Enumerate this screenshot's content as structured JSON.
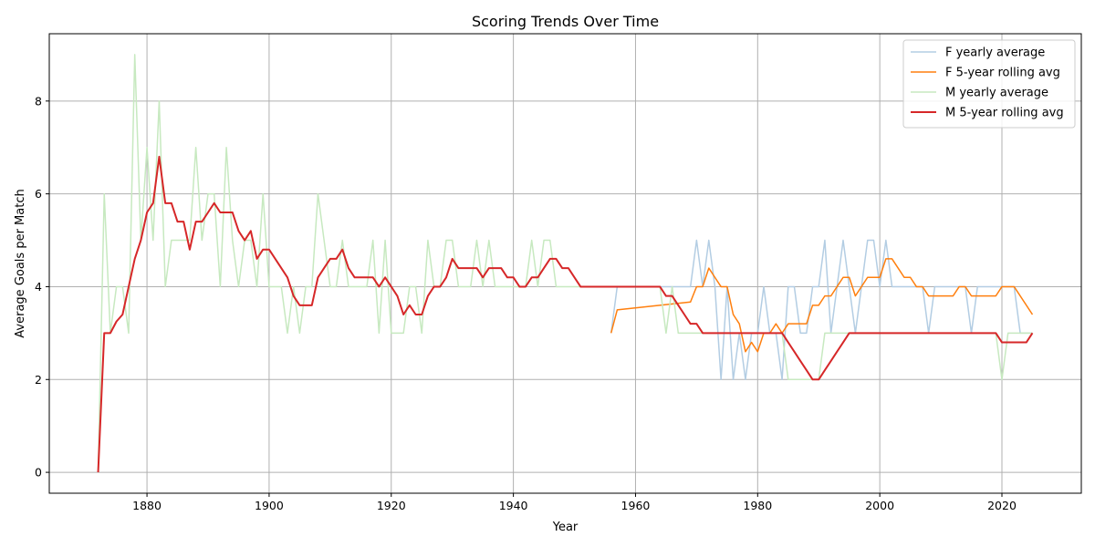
{
  "chart_data": {
    "type": "line",
    "title": "Scoring Trends Over Time",
    "xlabel": "Year",
    "ylabel": "Average Goals per Match",
    "xlim": [
      1864,
      2033
    ],
    "ylim": [
      -0.45,
      9.45
    ],
    "xticks": [
      1880,
      1900,
      1920,
      1940,
      1960,
      1980,
      2000,
      2020
    ],
    "yticks": [
      0,
      2,
      4,
      6,
      8
    ],
    "grid": true,
    "legend_position": "top-right",
    "series": [
      {
        "name": "F yearly average",
        "color": "#b3cde3",
        "width": 1.5,
        "points": [
          [
            1956,
            3
          ],
          [
            1957,
            4
          ],
          [
            1958,
            4
          ],
          [
            1959,
            4
          ],
          [
            1960,
            4
          ],
          [
            1961,
            4
          ],
          [
            1962,
            4
          ],
          [
            1963,
            4
          ],
          [
            1964,
            4
          ],
          [
            1965,
            4
          ],
          [
            1966,
            4
          ],
          [
            1967,
            4
          ],
          [
            1968,
            4
          ],
          [
            1969,
            4
          ],
          [
            1970,
            5
          ],
          [
            1971,
            4
          ],
          [
            1972,
            5
          ],
          [
            1973,
            4
          ],
          [
            1974,
            2
          ],
          [
            1975,
            4
          ],
          [
            1976,
            2
          ],
          [
            1977,
            3
          ],
          [
            1978,
            2
          ],
          [
            1979,
            3
          ],
          [
            1980,
            3
          ],
          [
            1981,
            4
          ],
          [
            1982,
            3
          ],
          [
            1983,
            3
          ],
          [
            1984,
            2
          ],
          [
            1985,
            4
          ],
          [
            1986,
            4
          ],
          [
            1987,
            3
          ],
          [
            1988,
            3
          ],
          [
            1989,
            4
          ],
          [
            1990,
            4
          ],
          [
            1991,
            5
          ],
          [
            1992,
            3
          ],
          [
            1993,
            4
          ],
          [
            1994,
            5
          ],
          [
            1995,
            4
          ],
          [
            1996,
            3
          ],
          [
            1997,
            4
          ],
          [
            1998,
            5
          ],
          [
            1999,
            5
          ],
          [
            2000,
            4
          ],
          [
            2001,
            5
          ],
          [
            2002,
            4
          ],
          [
            2003,
            4
          ],
          [
            2004,
            4
          ],
          [
            2005,
            4
          ],
          [
            2006,
            4
          ],
          [
            2007,
            4
          ],
          [
            2008,
            3
          ],
          [
            2009,
            4
          ],
          [
            2010,
            4
          ],
          [
            2011,
            4
          ],
          [
            2012,
            4
          ],
          [
            2013,
            4
          ],
          [
            2014,
            4
          ],
          [
            2015,
            3
          ],
          [
            2016,
            4
          ],
          [
            2017,
            4
          ],
          [
            2018,
            4
          ],
          [
            2019,
            4
          ],
          [
            2020,
            4
          ],
          [
            2021,
            4
          ],
          [
            2022,
            4
          ],
          [
            2023,
            3
          ],
          [
            2024,
            3
          ],
          [
            2025,
            3
          ]
        ]
      },
      {
        "name": "F 5-year rolling avg",
        "color": "#ff7f0e",
        "width": 1.5,
        "points": [
          [
            1956,
            3
          ],
          [
            1957,
            3.5
          ],
          [
            1969,
            3.67
          ],
          [
            1970,
            4
          ],
          [
            1971,
            4
          ],
          [
            1972,
            4.4
          ],
          [
            1973,
            4.2
          ],
          [
            1974,
            4
          ],
          [
            1975,
            4
          ],
          [
            1976,
            3.4
          ],
          [
            1977,
            3.2
          ],
          [
            1978,
            2.6
          ],
          [
            1979,
            2.8
          ],
          [
            1980,
            2.6
          ],
          [
            1981,
            3
          ],
          [
            1982,
            3
          ],
          [
            1983,
            3.2
          ],
          [
            1984,
            3
          ],
          [
            1985,
            3.2
          ],
          [
            1986,
            3.2
          ],
          [
            1987,
            3.2
          ],
          [
            1988,
            3.2
          ],
          [
            1989,
            3.6
          ],
          [
            1990,
            3.6
          ],
          [
            1991,
            3.8
          ],
          [
            1992,
            3.8
          ],
          [
            1993,
            4
          ],
          [
            1994,
            4.2
          ],
          [
            1995,
            4.2
          ],
          [
            1996,
            3.8
          ],
          [
            1997,
            4
          ],
          [
            1998,
            4.2
          ],
          [
            1999,
            4.2
          ],
          [
            2000,
            4.2
          ],
          [
            2001,
            4.6
          ],
          [
            2002,
            4.6
          ],
          [
            2003,
            4.4
          ],
          [
            2004,
            4.2
          ],
          [
            2005,
            4.2
          ],
          [
            2006,
            4
          ],
          [
            2007,
            4
          ],
          [
            2008,
            3.8
          ],
          [
            2009,
            3.8
          ],
          [
            2010,
            3.8
          ],
          [
            2011,
            3.8
          ],
          [
            2012,
            3.8
          ],
          [
            2013,
            4
          ],
          [
            2014,
            4
          ],
          [
            2015,
            3.8
          ],
          [
            2016,
            3.8
          ],
          [
            2017,
            3.8
          ],
          [
            2018,
            3.8
          ],
          [
            2019,
            3.8
          ],
          [
            2020,
            4
          ],
          [
            2021,
            4
          ],
          [
            2022,
            4
          ],
          [
            2025,
            3.4
          ]
        ]
      },
      {
        "name": "M yearly average",
        "color": "#c7e9c0",
        "width": 1.5,
        "points": [
          [
            1872,
            0
          ],
          [
            1873,
            6
          ],
          [
            1874,
            3
          ],
          [
            1875,
            4
          ],
          [
            1876,
            4
          ],
          [
            1877,
            3
          ],
          [
            1878,
            9
          ],
          [
            1879,
            5
          ],
          [
            1880,
            7
          ],
          [
            1881,
            5
          ],
          [
            1882,
            8
          ],
          [
            1883,
            4
          ],
          [
            1884,
            5
          ],
          [
            1885,
            5
          ],
          [
            1886,
            5
          ],
          [
            1887,
            5
          ],
          [
            1888,
            7
          ],
          [
            1889,
            5
          ],
          [
            1890,
            6
          ],
          [
            1891,
            6
          ],
          [
            1892,
            4
          ],
          [
            1893,
            7
          ],
          [
            1894,
            5
          ],
          [
            1895,
            4
          ],
          [
            1896,
            5
          ],
          [
            1897,
            5
          ],
          [
            1898,
            4
          ],
          [
            1899,
            6
          ],
          [
            1900,
            4
          ],
          [
            1901,
            4
          ],
          [
            1902,
            4
          ],
          [
            1903,
            3
          ],
          [
            1904,
            4
          ],
          [
            1905,
            3
          ],
          [
            1906,
            4
          ],
          [
            1907,
            4
          ],
          [
            1908,
            6
          ],
          [
            1909,
            5
          ],
          [
            1910,
            4
          ],
          [
            1911,
            4
          ],
          [
            1912,
            5
          ],
          [
            1913,
            4
          ],
          [
            1914,
            4
          ],
          [
            1915,
            4
          ],
          [
            1916,
            4
          ],
          [
            1917,
            5
          ],
          [
            1918,
            3
          ],
          [
            1919,
            5
          ],
          [
            1920,
            3
          ],
          [
            1921,
            3
          ],
          [
            1922,
            3
          ],
          [
            1923,
            4
          ],
          [
            1924,
            4
          ],
          [
            1925,
            3
          ],
          [
            1926,
            5
          ],
          [
            1927,
            4
          ],
          [
            1928,
            4
          ],
          [
            1929,
            5
          ],
          [
            1930,
            5
          ],
          [
            1931,
            4
          ],
          [
            1932,
            4
          ],
          [
            1933,
            4
          ],
          [
            1934,
            5
          ],
          [
            1935,
            4
          ],
          [
            1936,
            5
          ],
          [
            1937,
            4
          ],
          [
            1938,
            4
          ],
          [
            1939,
            4
          ],
          [
            1940,
            4
          ],
          [
            1941,
            4
          ],
          [
            1942,
            4
          ],
          [
            1943,
            5
          ],
          [
            1944,
            4
          ],
          [
            1945,
            5
          ],
          [
            1946,
            5
          ],
          [
            1947,
            4
          ],
          [
            1948,
            4
          ],
          [
            1949,
            4
          ],
          [
            1950,
            4
          ],
          [
            1951,
            4
          ],
          [
            1964,
            4
          ],
          [
            1965,
            3
          ],
          [
            1966,
            4
          ],
          [
            1967,
            3
          ],
          [
            1968,
            3
          ],
          [
            1969,
            3
          ],
          [
            1970,
            3
          ],
          [
            1984,
            3
          ],
          [
            1985,
            2
          ],
          [
            1989,
            2
          ],
          [
            1990,
            2
          ],
          [
            1991,
            3
          ],
          [
            1992,
            3
          ],
          [
            2019,
            3
          ],
          [
            2020,
            2
          ],
          [
            2021,
            3
          ],
          [
            2022,
            3
          ],
          [
            2025,
            3
          ]
        ]
      },
      {
        "name": "M 5-year rolling avg",
        "color": "#d62728",
        "width": 2,
        "points": [
          [
            1872,
            0
          ],
          [
            1873,
            3
          ],
          [
            1874,
            3
          ],
          [
            1875,
            3.25
          ],
          [
            1876,
            3.4
          ],
          [
            1877,
            4
          ],
          [
            1878,
            4.6
          ],
          [
            1879,
            5
          ],
          [
            1880,
            5.6
          ],
          [
            1881,
            5.8
          ],
          [
            1882,
            6.8
          ],
          [
            1883,
            5.8
          ],
          [
            1884,
            5.8
          ],
          [
            1885,
            5.4
          ],
          [
            1886,
            5.4
          ],
          [
            1887,
            4.8
          ],
          [
            1888,
            5.4
          ],
          [
            1889,
            5.4
          ],
          [
            1890,
            5.6
          ],
          [
            1891,
            5.8
          ],
          [
            1892,
            5.6
          ],
          [
            1893,
            5.6
          ],
          [
            1894,
            5.6
          ],
          [
            1895,
            5.2
          ],
          [
            1896,
            5
          ],
          [
            1897,
            5.2
          ],
          [
            1898,
            4.6
          ],
          [
            1899,
            4.8
          ],
          [
            1900,
            4.8
          ],
          [
            1903,
            4.2
          ],
          [
            1904,
            3.8
          ],
          [
            1905,
            3.6
          ],
          [
            1906,
            3.6
          ],
          [
            1907,
            3.6
          ],
          [
            1908,
            4.2
          ],
          [
            1909,
            4.4
          ],
          [
            1910,
            4.6
          ],
          [
            1911,
            4.6
          ],
          [
            1912,
            4.8
          ],
          [
            1913,
            4.4
          ],
          [
            1914,
            4.2
          ],
          [
            1915,
            4.2
          ],
          [
            1916,
            4.2
          ],
          [
            1917,
            4.2
          ],
          [
            1918,
            4
          ],
          [
            1919,
            4.2
          ],
          [
            1920,
            4
          ],
          [
            1921,
            3.8
          ],
          [
            1922,
            3.4
          ],
          [
            1923,
            3.6
          ],
          [
            1924,
            3.4
          ],
          [
            1925,
            3.4
          ],
          [
            1926,
            3.8
          ],
          [
            1927,
            4
          ],
          [
            1928,
            4
          ],
          [
            1929,
            4.2
          ],
          [
            1930,
            4.6
          ],
          [
            1931,
            4.4
          ],
          [
            1932,
            4.4
          ],
          [
            1933,
            4.4
          ],
          [
            1934,
            4.4
          ],
          [
            1935,
            4.2
          ],
          [
            1936,
            4.4
          ],
          [
            1937,
            4.4
          ],
          [
            1938,
            4.4
          ],
          [
            1939,
            4.2
          ],
          [
            1940,
            4.2
          ],
          [
            1941,
            4
          ],
          [
            1942,
            4
          ],
          [
            1943,
            4.2
          ],
          [
            1944,
            4.2
          ],
          [
            1945,
            4.4
          ],
          [
            1946,
            4.6
          ],
          [
            1947,
            4.6
          ],
          [
            1948,
            4.4
          ],
          [
            1949,
            4.4
          ],
          [
            1950,
            4.2
          ],
          [
            1951,
            4
          ],
          [
            1964,
            4
          ],
          [
            1965,
            3.8
          ],
          [
            1966,
            3.8
          ],
          [
            1967,
            3.6
          ],
          [
            1968,
            3.4
          ],
          [
            1969,
            3.2
          ],
          [
            1970,
            3.2
          ],
          [
            1971,
            3
          ],
          [
            1984,
            3
          ],
          [
            1985,
            2.8
          ],
          [
            1986,
            2.6
          ],
          [
            1987,
            2.4
          ],
          [
            1988,
            2.2
          ],
          [
            1989,
            2
          ],
          [
            1990,
            2
          ],
          [
            1991,
            2.2
          ],
          [
            1992,
            2.4
          ],
          [
            1993,
            2.6
          ],
          [
            1994,
            2.8
          ],
          [
            1995,
            3
          ],
          [
            2019,
            3
          ],
          [
            2020,
            2.8
          ],
          [
            2024,
            2.8
          ],
          [
            2025,
            3
          ]
        ]
      }
    ]
  }
}
